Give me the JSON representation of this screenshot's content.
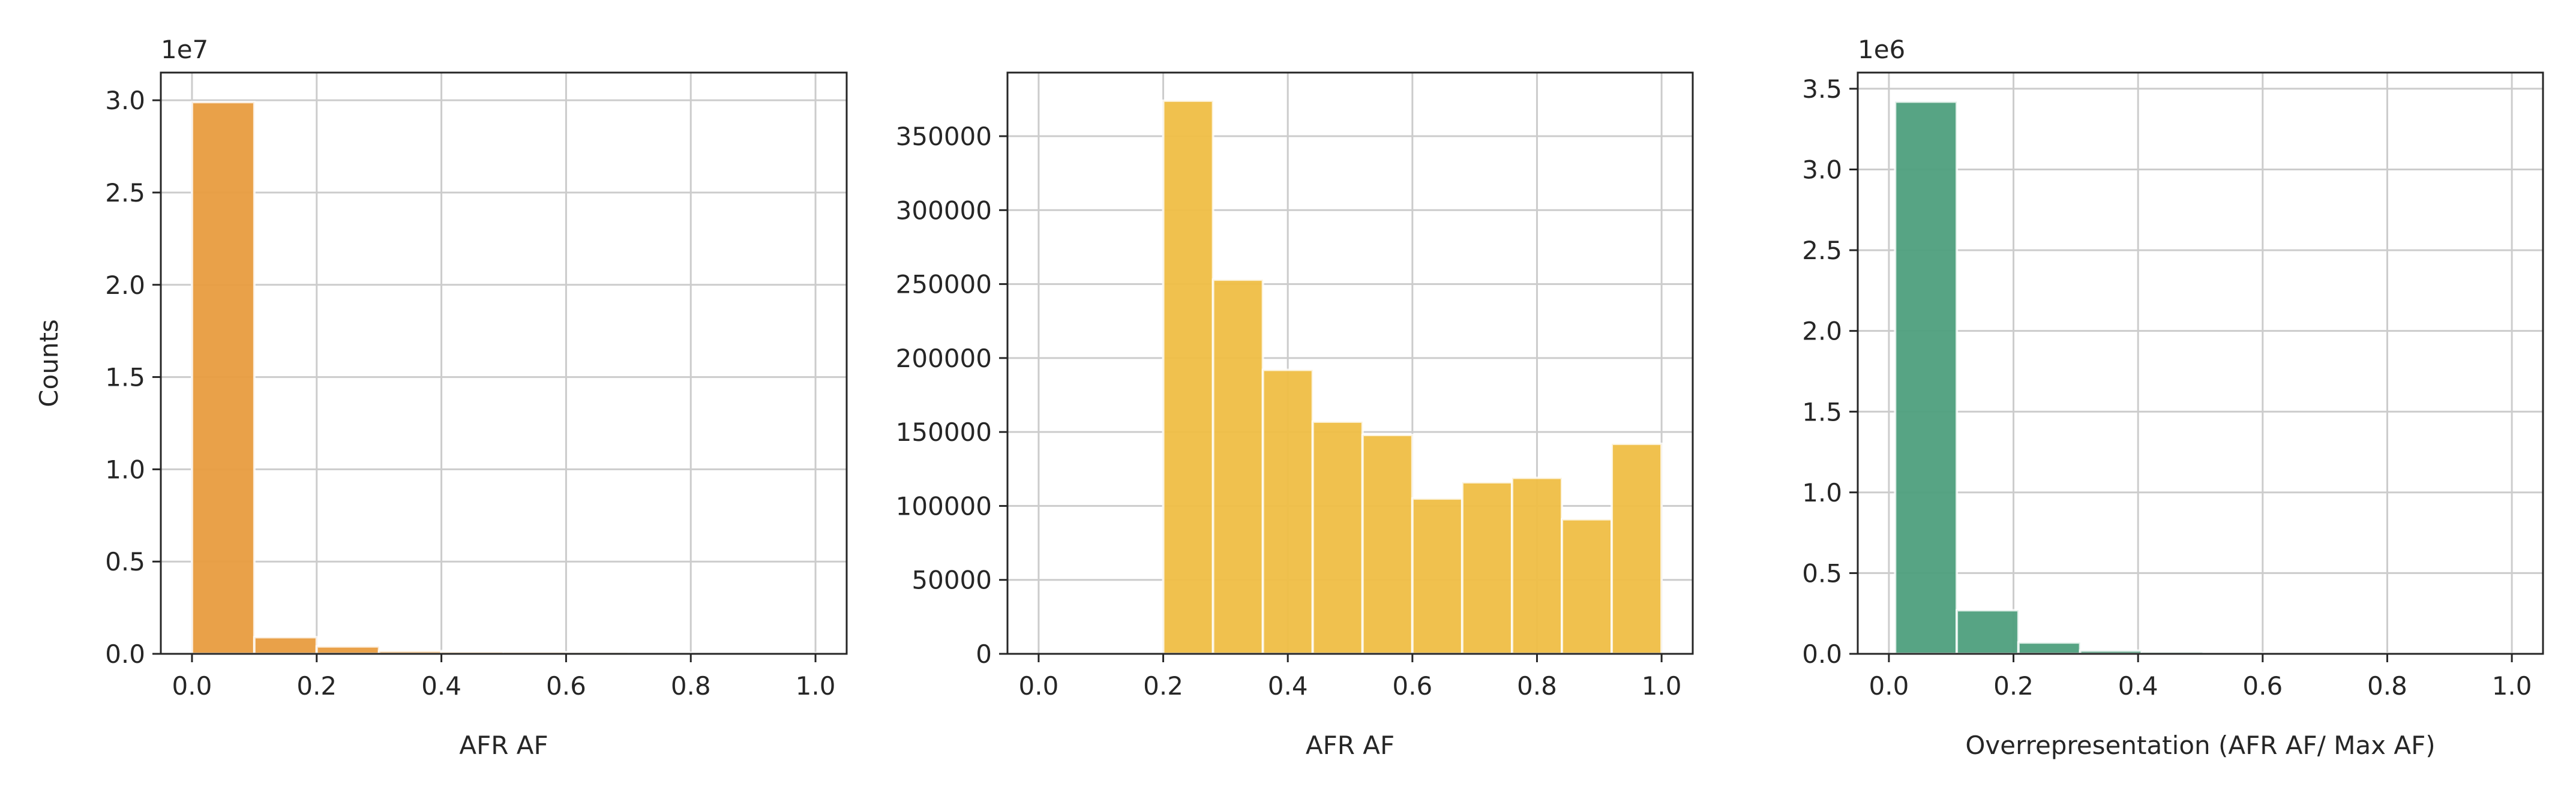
{
  "chart_data": [
    {
      "type": "bar",
      "xlabel": "AFR AF",
      "ylabel": "Counts",
      "offset_label": "1e7",
      "color": "#e89c3f",
      "xlim": [
        -0.05,
        1.05
      ],
      "ylim": [
        0,
        3.15
      ],
      "xticks": [
        "0.0",
        "0.2",
        "0.4",
        "0.6",
        "0.8",
        "1.0"
      ],
      "xtick_values": [
        0.0,
        0.2,
        0.4,
        0.6,
        0.8,
        1.0
      ],
      "yticks": [
        "0.0",
        "0.5",
        "1.0",
        "1.5",
        "2.0",
        "2.5",
        "3.0"
      ],
      "ytick_values": [
        0.0,
        0.5,
        1.0,
        1.5,
        2.0,
        2.5,
        3.0
      ],
      "bin_edges": [
        0.0,
        0.1,
        0.2,
        0.3,
        0.4,
        0.5,
        0.6,
        0.7,
        0.8,
        0.9,
        1.0
      ],
      "values": [
        2.99,
        0.09,
        0.04,
        0.015,
        0.01,
        0.008,
        0.006,
        0.005,
        0.004,
        0.004
      ]
    },
    {
      "type": "bar",
      "xlabel": "AFR AF",
      "ylabel": "",
      "offset_label": "",
      "color": "#efbe45",
      "xlim": [
        -0.05,
        1.05
      ],
      "ylim": [
        0,
        393000
      ],
      "xticks": [
        "0.0",
        "0.2",
        "0.4",
        "0.6",
        "0.8",
        "1.0"
      ],
      "xtick_values": [
        0.0,
        0.2,
        0.4,
        0.6,
        0.8,
        1.0
      ],
      "yticks": [
        "0",
        "50000",
        "100000",
        "150000",
        "200000",
        "250000",
        "300000",
        "350000"
      ],
      "ytick_values": [
        0,
        50000,
        100000,
        150000,
        200000,
        250000,
        300000,
        350000
      ],
      "bin_edges": [
        0.2,
        0.28,
        0.36,
        0.44,
        0.52,
        0.6,
        0.68,
        0.76,
        0.84,
        0.92,
        1.0
      ],
      "values": [
        374000,
        253000,
        192000,
        157000,
        148000,
        105000,
        116000,
        119000,
        91000,
        142000
      ]
    },
    {
      "type": "bar",
      "xlabel": "Overrepresentation (AFR AF/ Max AF)",
      "ylabel": "",
      "offset_label": "1e6",
      "color": "#4e9f7d",
      "xlim": [
        -0.05,
        1.05
      ],
      "ylim": [
        0,
        3.6
      ],
      "xticks": [
        "0.0",
        "0.2",
        "0.4",
        "0.6",
        "0.8",
        "1.0"
      ],
      "xtick_values": [
        0.0,
        0.2,
        0.4,
        0.6,
        0.8,
        1.0
      ],
      "yticks": [
        "0.0",
        "0.5",
        "1.0",
        "1.5",
        "2.0",
        "2.5",
        "3.0",
        "3.5"
      ],
      "ytick_values": [
        0.0,
        0.5,
        1.0,
        1.5,
        2.0,
        2.5,
        3.0,
        3.5
      ],
      "bin_edges": [
        0.01,
        0.109,
        0.208,
        0.307,
        0.406,
        0.505,
        0.604,
        0.703,
        0.802,
        0.901,
        1.0
      ],
      "values": [
        3.42,
        0.27,
        0.07,
        0.02,
        0.01,
        0.005,
        0.003,
        0.002,
        0.001,
        0.001
      ]
    }
  ]
}
